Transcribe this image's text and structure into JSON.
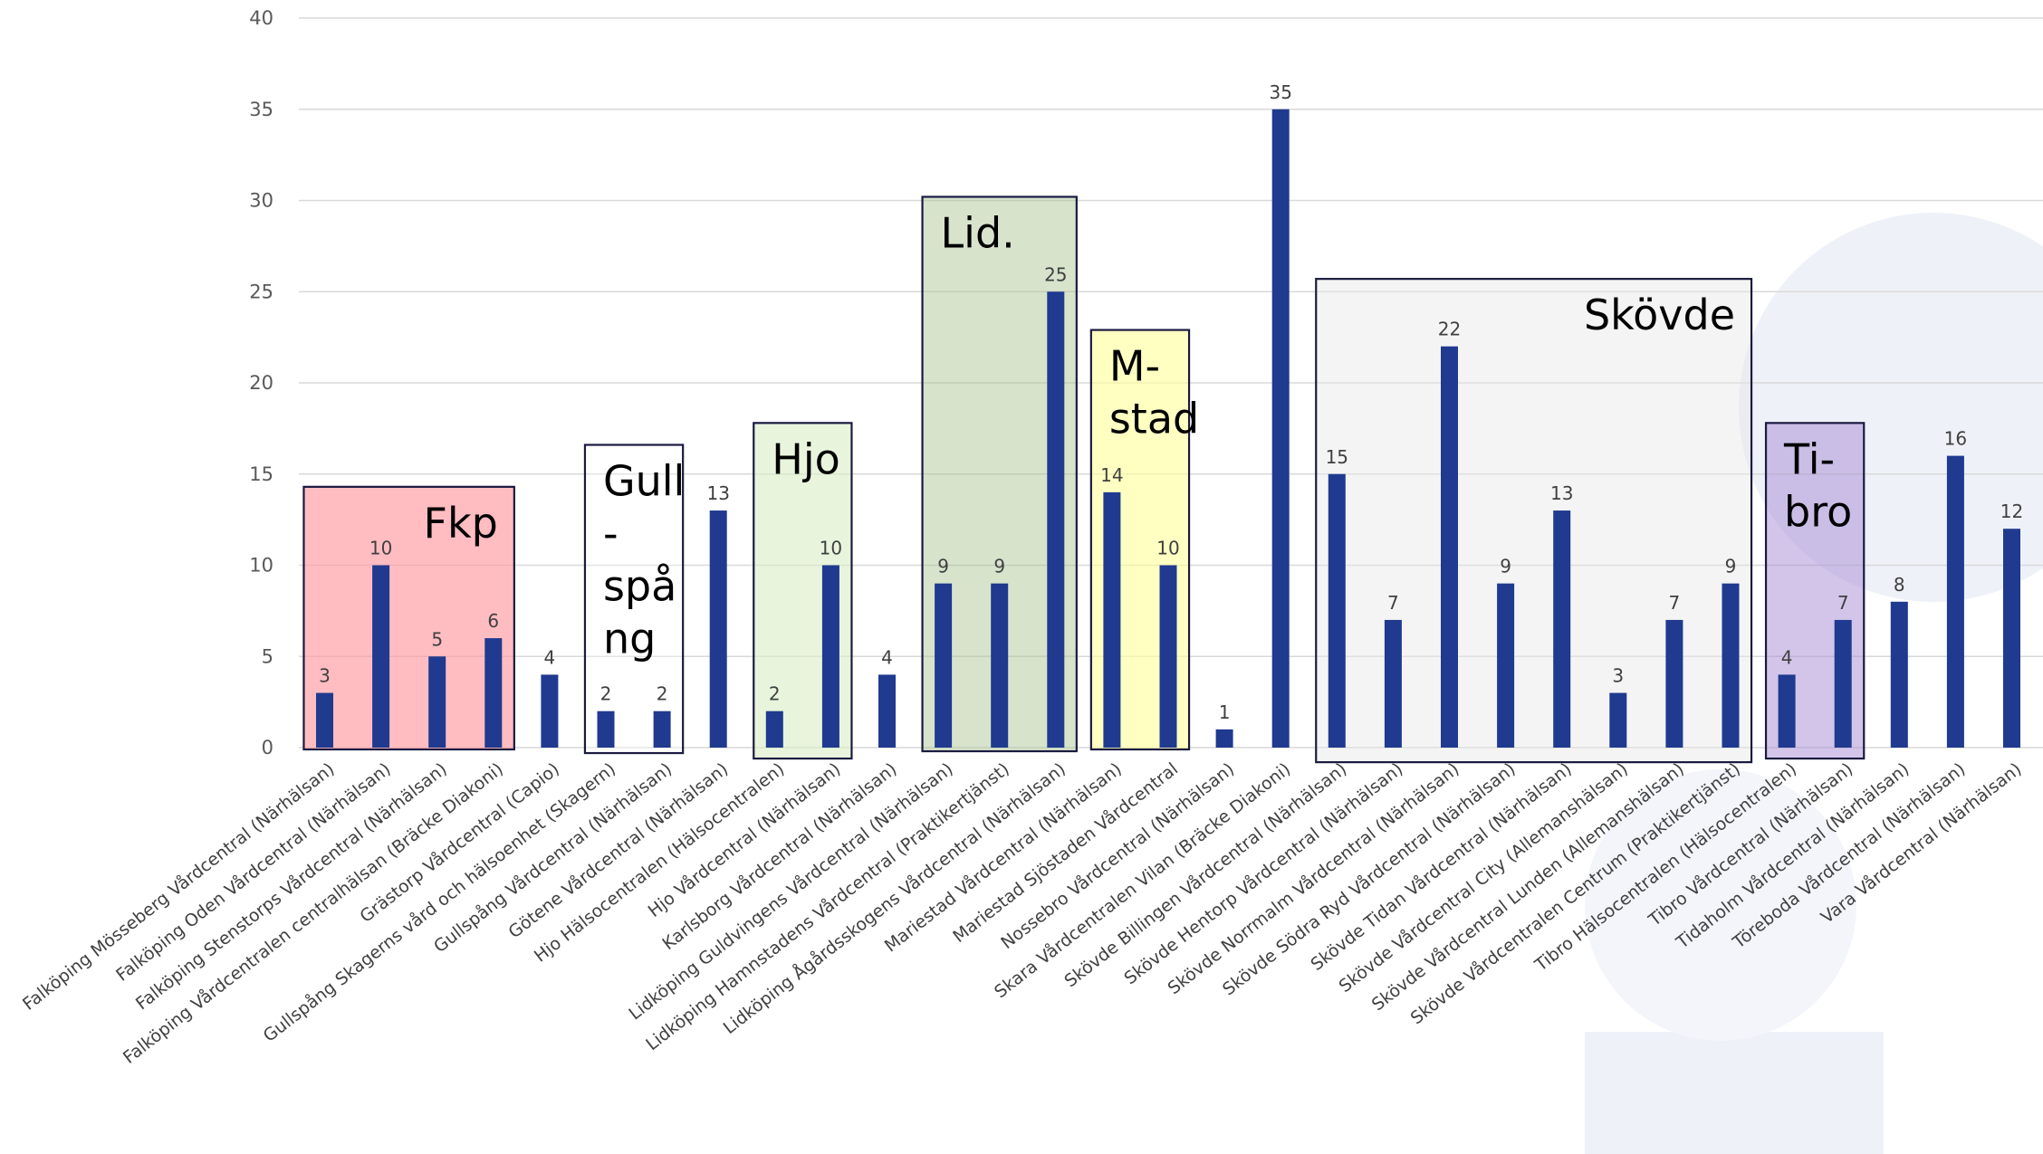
{
  "chart_data": {
    "type": "bar",
    "ylim": [
      0,
      40
    ],
    "yticks": [
      0,
      5,
      10,
      15,
      20,
      25,
      30,
      35,
      40
    ],
    "grid": true,
    "bar_color": "#1f3a8f",
    "categories": [
      "Falköping Mösseberg Vårdcentral (Närhälsan)",
      "Falköping Oden Vårdcentral (Närhälsan)",
      "Falköping Stenstorps Vårdcentral (Närhälsan)",
      "Falköping Vårdcentralen centralhälsan (Bräcke Diakoni)",
      "Grästorp Vårdcentral (Capio)",
      "Gullspång Skagerns vård och hälsoenhet (Skagern)",
      "Gullspång Vårdcentral (Närhälsan)",
      "Götene Vårdcentral (Närhälsan)",
      "Hjo Hälsocentralen (Hälsocentralen)",
      "Hjo Vårdcentral (Närhälsan)",
      "Karlsborg Vårdcentral (Närhälsan)",
      "Lidköping Guldvingens Vårdcentral (Närhälsan)",
      "Lidköping Hamnstadens Vårdcentral (Praktikertjänst)",
      "Lidköping Ågårdsskogens Vårdcentral (Närhälsan)",
      "Mariestad Vårdcentral (Närhälsan)",
      "Mariestad Sjöstaden Vårdcentral",
      "Nossebro Vårdcentral (Närhälsan)",
      "Skara Vårdcentralen Vilan (Bräcke Diakoni)",
      "Skövde Billingen Vårdcentral (Närhälsan)",
      "Skövde Hentorp Vårdcentral (Närhälsan)",
      "Skövde Norrmalm Vårdcentral (Närhälsan)",
      "Skövde Södra Ryd Vårdcentral (Närhälsan)",
      "Skövde Tidan Vårdcentral (Närhälsan)",
      "Skövde Vårdcentral City (Allemanshälsan)",
      "Skövde Vårdcentral Lunden (Allemanshälsan)",
      "Skövde Vårdcentralen Centrum (Praktikertjänst)",
      "Tibro Hälsocentralen (Hälsocentralen)",
      "Tibro Vårdcentral (Närhälsan)",
      "Tidaholm Vårdcentral (Närhälsan)",
      "Töreboda Vårdcentral (Närhälsan)",
      "Vara Vårdcentral (Närhälsan)"
    ],
    "values": [
      3,
      10,
      5,
      6,
      4,
      2,
      2,
      13,
      2,
      10,
      4,
      9,
      9,
      25,
      14,
      10,
      1,
      35,
      15,
      7,
      22,
      9,
      13,
      3,
      7,
      9,
      4,
      7,
      8,
      16,
      12
    ],
    "groups": [
      {
        "label": "Fkp",
        "from": 0,
        "to": 3,
        "ytop": 14.3,
        "ybottom": -0.1,
        "fill": "#ff9aa2",
        "opacity": 0.65
      },
      {
        "label": "Gull\n-\nspå\nng",
        "from": 5,
        "to": 6,
        "ytop": 16.6,
        "ybottom": -0.3,
        "fill": "#ffffff",
        "opacity": 0.3
      },
      {
        "label": "Hjo",
        "from": 8,
        "to": 9,
        "ytop": 17.8,
        "ybottom": -0.6,
        "fill": "#d9efc4",
        "opacity": 0.6
      },
      {
        "label": "Lid.",
        "from": 11,
        "to": 13,
        "ytop": 30.2,
        "ybottom": -0.2,
        "fill": "#a9c08f",
        "opacity": 0.45
      },
      {
        "label": "M-\nstad",
        "from": 14,
        "to": 15,
        "ytop": 22.9,
        "ybottom": -0.1,
        "fill": "#ffff99",
        "opacity": 0.6
      },
      {
        "label": "Skövde",
        "from": 18,
        "to": 25,
        "ytop": 25.7,
        "ybottom": -0.8,
        "fill": "#e6e6e6",
        "opacity": 0.45
      },
      {
        "label": "Ti-\nbro",
        "from": 26,
        "to": 27,
        "ytop": 17.8,
        "ybottom": -0.6,
        "fill": "#a78bd4",
        "opacity": 0.5
      }
    ]
  }
}
